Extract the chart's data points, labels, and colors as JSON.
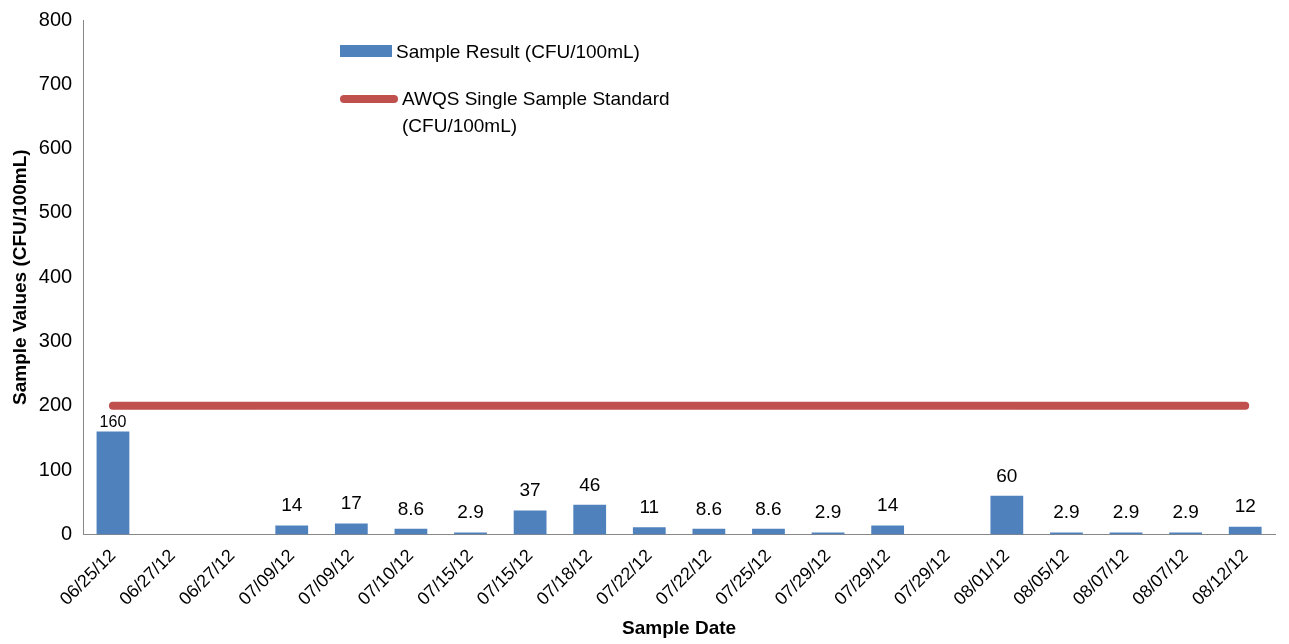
{
  "chart_data": {
    "type": "bar",
    "xlabel": "Sample Date",
    "ylabel": "Sample Values (CFU/100mL)",
    "categories": [
      "06/25/12",
      "06/27/12",
      "06/27/12",
      "07/09/12",
      "07/09/12",
      "07/10/12",
      "07/15/12",
      "07/15/12",
      "07/18/12",
      "07/22/12",
      "07/22/12",
      "07/25/12",
      "07/29/12",
      "07/29/12",
      "07/29/12",
      "08/01/12",
      "08/05/12",
      "08/07/12",
      "08/07/12",
      "08/12/12"
    ],
    "series": [
      {
        "name": "Sample Result (CFU/100mL)",
        "color": "#4f81bd",
        "values": [
          160,
          null,
          null,
          14,
          17,
          8.6,
          2.9,
          37,
          46,
          11,
          8.6,
          8.6,
          2.9,
          14,
          null,
          60,
          2.9,
          2.9,
          2.9,
          12
        ],
        "value_labels": [
          "160",
          null,
          null,
          "14",
          "17",
          "8.6",
          "2.9",
          "37",
          "46",
          "11",
          "8.6",
          "8.6",
          "2.9",
          "14",
          null,
          "60",
          "2.9",
          "2.9",
          "2.9",
          "12"
        ]
      },
      {
        "name": "AWQS Single Sample Standard (CFU/100mL)",
        "type": "line",
        "color": "#c0504d",
        "values": [
          200,
          200,
          200,
          200,
          200,
          200,
          200,
          200,
          200,
          200,
          200,
          200,
          200,
          200,
          200,
          200,
          200,
          200,
          200,
          200
        ]
      }
    ],
    "ylim": [
      0,
      800
    ],
    "yticks": [
      0,
      100,
      200,
      300,
      400,
      500,
      600,
      700,
      800
    ],
    "legend": "top",
    "grid": false
  }
}
